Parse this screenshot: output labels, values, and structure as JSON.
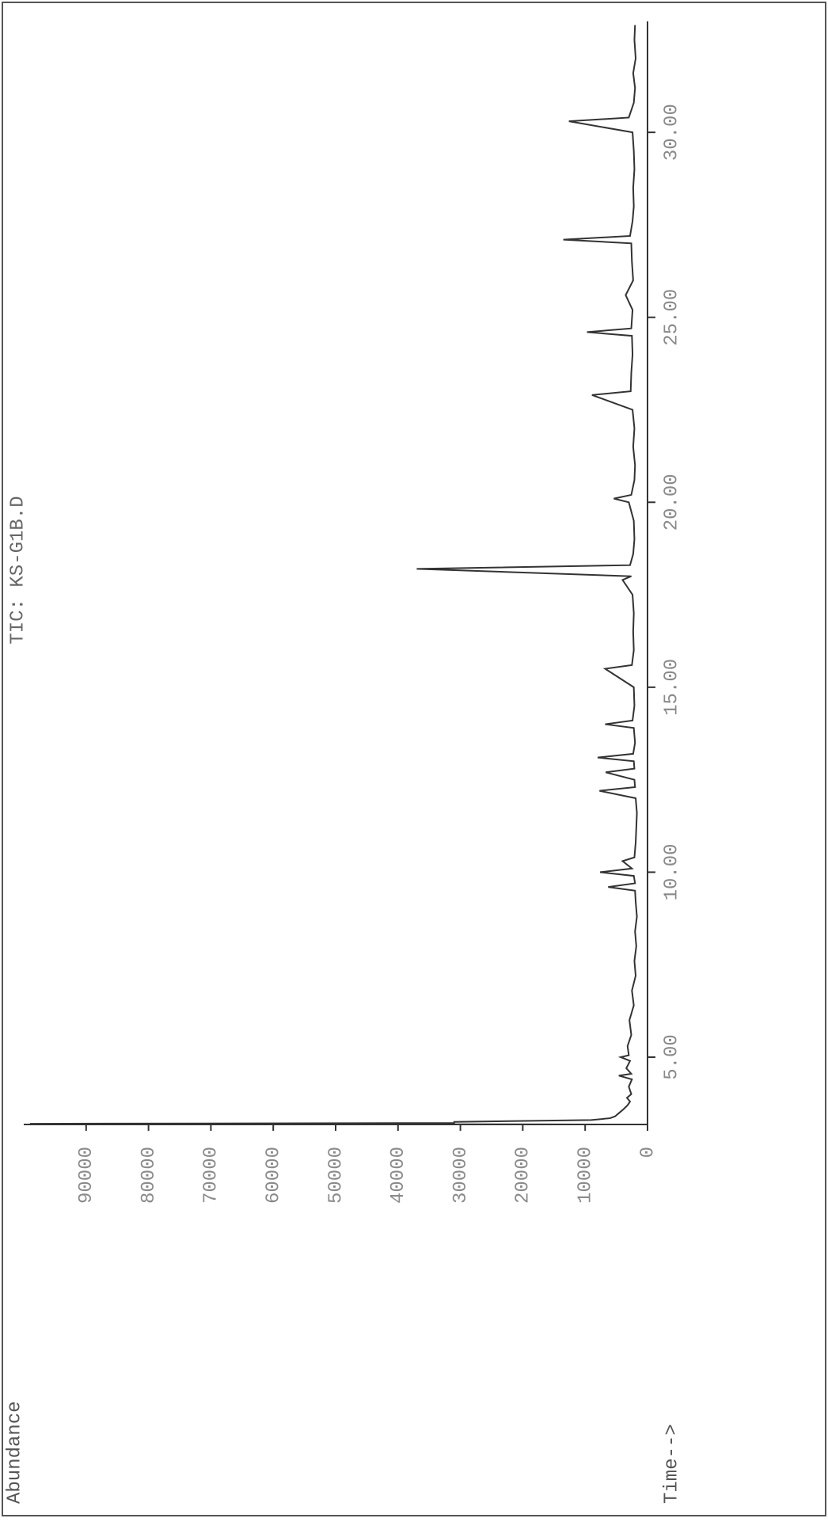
{
  "chart_data": {
    "type": "line",
    "title": "TIC: KS-G1B.D",
    "y_label": "Abundance",
    "x_label": "Time-->",
    "color": "#333333",
    "x": [
      3.18,
      3.2,
      3.22,
      3.25,
      3.3,
      3.35,
      3.4,
      3.5,
      3.6,
      3.7,
      3.8,
      3.9,
      4.0,
      4.2,
      4.4,
      4.5,
      4.55,
      4.7,
      4.9,
      5.0,
      5.05,
      5.3,
      5.6,
      6.0,
      6.4,
      6.8,
      7.2,
      7.6,
      8.0,
      8.4,
      8.8,
      9.2,
      9.5,
      9.6,
      9.7,
      9.9,
      10.0,
      10.1,
      10.3,
      10.4,
      10.8,
      11.2,
      11.6,
      12.0,
      12.2,
      12.3,
      12.5,
      12.7,
      12.8,
      13.0,
      13.1,
      13.2,
      13.5,
      13.9,
      14.0,
      14.1,
      14.5,
      15.0,
      15.5,
      15.6,
      16.0,
      16.5,
      17.0,
      17.5,
      17.9,
      18.0,
      18.2,
      18.3,
      18.6,
      19.0,
      19.5,
      20.0,
      20.1,
      20.2,
      20.6,
      21.0,
      21.5,
      22.0,
      22.5,
      22.9,
      23.0,
      23.5,
      24.0,
      24.5,
      24.6,
      24.7,
      25.2,
      25.6,
      26.0,
      26.5,
      27.0,
      27.1,
      27.2,
      27.6,
      28.0,
      28.5,
      29.0,
      29.5,
      30.0,
      30.3,
      30.4,
      30.8,
      31.2,
      31.6,
      32.0,
      32.5,
      32.9
    ],
    "values": [
      1500,
      99000,
      31000,
      31000,
      9000,
      6000,
      5200,
      4500,
      3800,
      3200,
      2800,
      3300,
      2600,
      3000,
      2500,
      4600,
      2600,
      3400,
      2800,
      4300,
      3000,
      3200,
      2600,
      2900,
      2200,
      2500,
      1900,
      2100,
      1800,
      2000,
      1700,
      1900,
      2000,
      6300,
      2000,
      2200,
      7600,
      2500,
      4000,
      2100,
      1900,
      1800,
      1700,
      1900,
      7700,
      2000,
      2100,
      6700,
      2100,
      2200,
      8000,
      2300,
      2000,
      2200,
      6800,
      2400,
      2100,
      2200,
      6800,
      2500,
      2200,
      2300,
      2200,
      2400,
      4000,
      2600,
      37000,
      2800,
      2300,
      2100,
      2200,
      3000,
      5400,
      2600,
      2100,
      2000,
      2300,
      2100,
      2400,
      8900,
      2700,
      2600,
      2400,
      2500,
      9700,
      2600,
      2400,
      3500,
      2300,
      2500,
      2600,
      13500,
      2800,
      2400,
      2200,
      2300,
      2100,
      2200,
      2400,
      12600,
      3000,
      2200,
      2000,
      2300,
      1900,
      2100,
      2000
    ],
    "xlim": [
      3.18,
      33.0
    ],
    "ylim": [
      0,
      100000
    ],
    "xticks": [
      {
        "value": 5,
        "label": "5.00"
      },
      {
        "value": 10,
        "label": "10.00"
      },
      {
        "value": 15,
        "label": "15.00"
      },
      {
        "value": 20,
        "label": "20.00"
      },
      {
        "value": 25,
        "label": "25.00"
      },
      {
        "value": 30,
        "label": "30.00"
      }
    ],
    "yticks": [
      0,
      10000,
      20000,
      30000,
      40000,
      50000,
      60000,
      70000,
      80000,
      90000
    ]
  }
}
